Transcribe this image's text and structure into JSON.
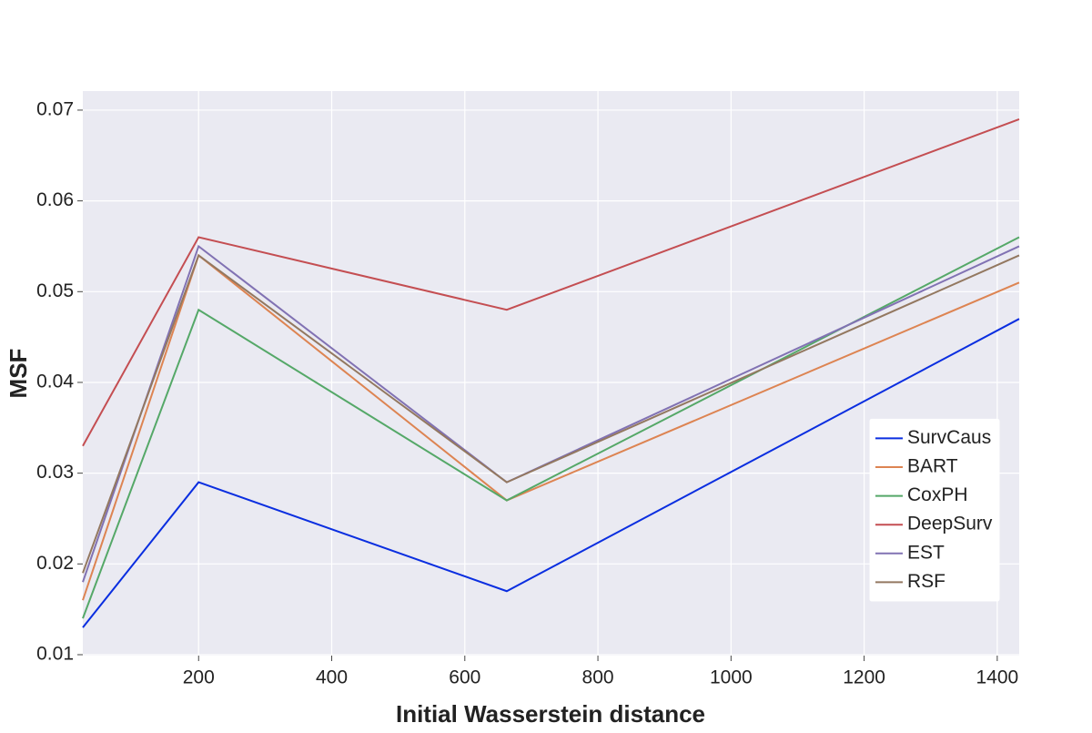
{
  "chart_data": {
    "type": "line",
    "xlabel": "Initial Wasserstein distance",
    "ylabel": "MSF",
    "x": [
      26,
      200,
      663,
      1433
    ],
    "series": [
      {
        "name": "SurvCaus",
        "color": "#0a2ee0",
        "values": [
          0.013,
          0.029,
          0.017,
          0.047
        ]
      },
      {
        "name": "BART",
        "color": "#dd8452",
        "values": [
          0.016,
          0.054,
          0.027,
          0.051
        ]
      },
      {
        "name": "CoxPH",
        "color": "#55a868",
        "values": [
          0.014,
          0.048,
          0.027,
          0.056
        ]
      },
      {
        "name": "DeepSurv",
        "color": "#c44e52",
        "values": [
          0.033,
          0.056,
          0.048,
          0.069
        ]
      },
      {
        "name": "EST",
        "color": "#8172b3",
        "values": [
          0.018,
          0.055,
          0.029,
          0.055
        ]
      },
      {
        "name": "RSF",
        "color": "#937860",
        "values": [
          0.019,
          0.054,
          0.029,
          0.054
        ]
      }
    ],
    "xlim": [
      26,
      1433
    ],
    "ylim": [
      0.0099,
      0.0721
    ],
    "xticks": [
      200,
      400,
      600,
      800,
      1000,
      1200,
      1400
    ],
    "yticks": [
      0.01,
      0.02,
      0.03,
      0.04,
      0.05,
      0.06,
      0.07
    ],
    "grid": true,
    "legend": "lower right"
  }
}
